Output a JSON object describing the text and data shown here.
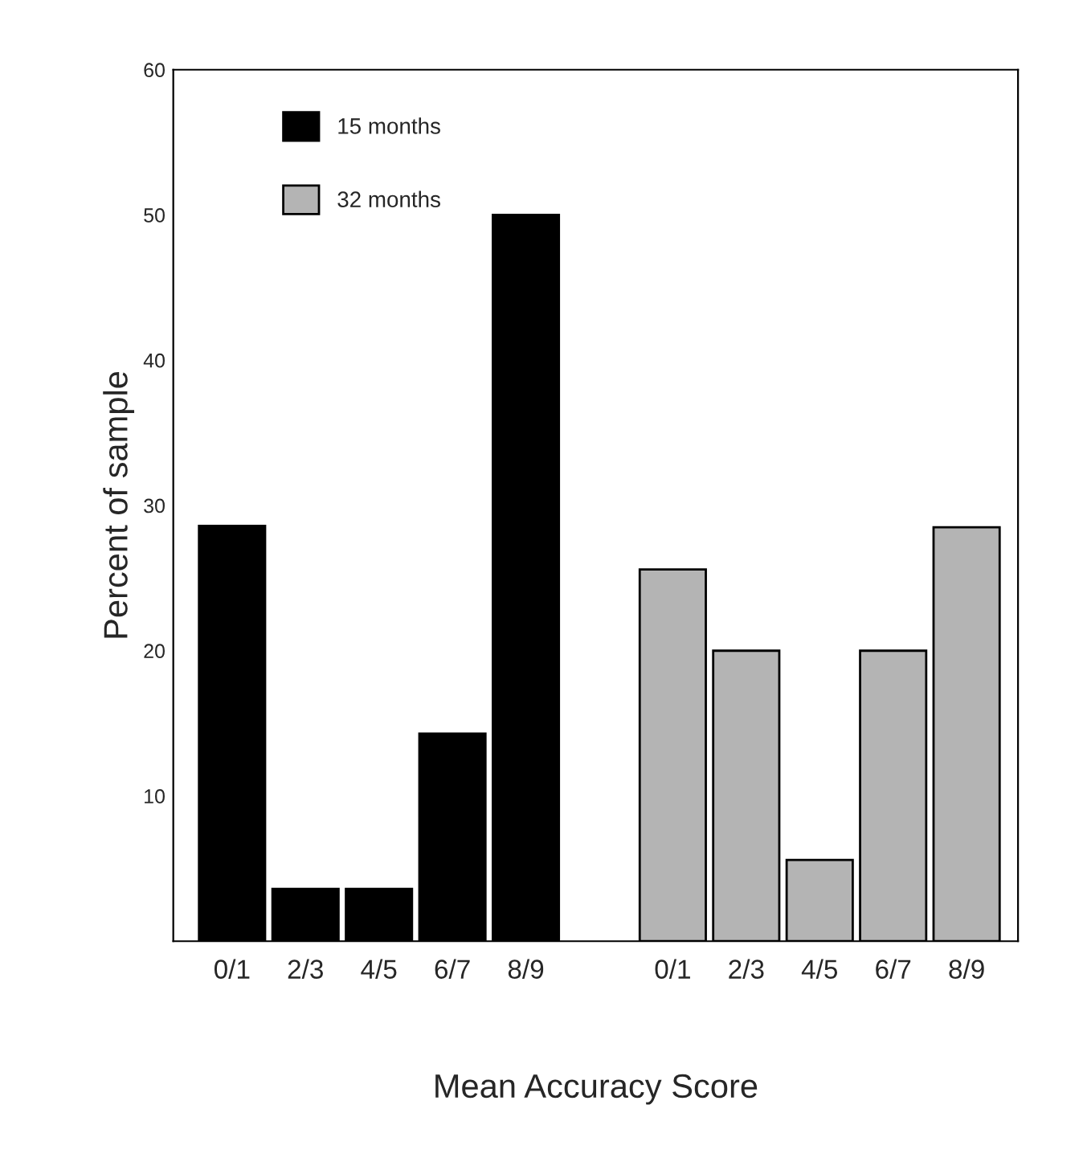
{
  "chart_data": {
    "type": "bar",
    "xlabel": "Mean Accuracy Score",
    "ylabel": "Percent of sample",
    "categories": [
      "0/1",
      "2/3",
      "4/5",
      "6/7",
      "8/9",
      null,
      "0/1",
      "2/3",
      "4/5",
      "6/7",
      "8/9"
    ],
    "series": [
      {
        "name": "15 months",
        "color": "#000000",
        "values": [
          28.6,
          3.6,
          3.6,
          14.3,
          50,
          null,
          null,
          null,
          null,
          null,
          null
        ]
      },
      {
        "name": "32 months",
        "color": "#b4b4b4",
        "values": [
          null,
          null,
          null,
          null,
          null,
          null,
          25.6,
          20,
          5.6,
          20,
          28.5
        ]
      }
    ],
    "ylim": [
      0,
      60
    ],
    "yticks": [
      10,
      20,
      30,
      40,
      50,
      60
    ],
    "grid": false,
    "legend": "top left"
  }
}
